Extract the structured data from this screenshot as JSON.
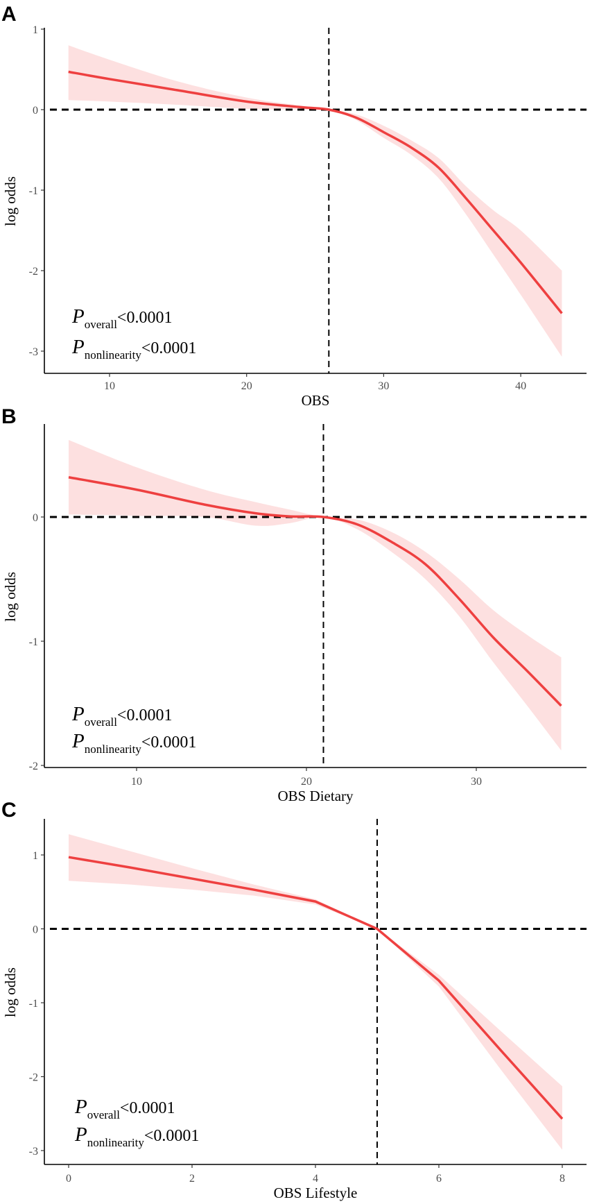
{
  "colors": {
    "line": "#EE4040",
    "band": "#FDE0E0",
    "ref": "#000000"
  },
  "chart_data": [
    {
      "type": "line",
      "panel_label": "A",
      "xlabel": "OBS",
      "ylabel": "log odds",
      "xticks": [
        10,
        20,
        30,
        40
      ],
      "yticks": [
        1,
        0,
        -1,
        -2,
        -3
      ],
      "xlim": [
        7,
        43
      ],
      "ylim": [
        -3.27,
        1
      ],
      "ref_x": 26,
      "ref_y": 0,
      "annotations": [
        {
          "symbol": "P",
          "sub": "overall",
          "text": "<0.0001"
        },
        {
          "symbol": "P",
          "sub": "nonlinearity",
          "text": "<0.0001"
        }
      ],
      "series": {
        "x": [
          7,
          10,
          15,
          20,
          24,
          26,
          28,
          30,
          32,
          34,
          36,
          38,
          40,
          43
        ],
        "y": [
          0.47,
          0.38,
          0.24,
          0.1,
          0.03,
          0,
          -0.1,
          -0.28,
          -0.47,
          -0.72,
          -1.1,
          -1.5,
          -1.9,
          -2.53
        ],
        "upper": [
          0.8,
          0.62,
          0.35,
          0.15,
          0.05,
          0,
          -0.06,
          -0.2,
          -0.38,
          -0.6,
          -0.95,
          -1.25,
          -1.5,
          -2.0
        ],
        "lower": [
          0.12,
          0.1,
          0.06,
          0.01,
          0.0,
          0,
          -0.13,
          -0.35,
          -0.56,
          -0.85,
          -1.3,
          -1.8,
          -2.3,
          -3.07
        ]
      }
    },
    {
      "type": "line",
      "panel_label": "B",
      "xlabel": "OBS Dietary",
      "ylabel": "log odds",
      "xticks": [
        10,
        20,
        30
      ],
      "yticks": [
        0,
        -1,
        -2
      ],
      "xlim": [
        6,
        35
      ],
      "ylim": [
        -2,
        0.75
      ],
      "ref_x": 21,
      "ref_y": 0,
      "annotations": [
        {
          "symbol": "P",
          "sub": "overall",
          "text": "<0.0001"
        },
        {
          "symbol": "P",
          "sub": "nonlinearity",
          "text": "<0.0001"
        }
      ],
      "series": {
        "x": [
          6,
          10,
          14,
          17,
          19,
          21,
          23,
          25,
          27,
          29,
          31,
          33,
          35
        ],
        "y": [
          0.32,
          0.22,
          0.1,
          0.03,
          0.005,
          0,
          -0.06,
          -0.2,
          -0.38,
          -0.66,
          -0.97,
          -1.24,
          -1.52
        ],
        "upper": [
          0.62,
          0.4,
          0.22,
          0.12,
          0.06,
          0,
          -0.02,
          -0.12,
          -0.28,
          -0.5,
          -0.75,
          -0.95,
          -1.13
        ],
        "lower": [
          0.02,
          0.01,
          0.0,
          -0.07,
          -0.05,
          0,
          -0.1,
          -0.28,
          -0.5,
          -0.8,
          -1.17,
          -1.52,
          -1.88
        ]
      }
    },
    {
      "type": "line",
      "panel_label": "C",
      "xlabel": "OBS Lifestyle",
      "ylabel": "log odds",
      "xticks": [
        0,
        2,
        4,
        6,
        8
      ],
      "yticks": [
        1,
        0,
        -1,
        -2,
        -3
      ],
      "xlim": [
        0,
        8
      ],
      "ylim": [
        -3.19,
        1.48
      ],
      "ref_x": 5,
      "ref_y": 0,
      "annotations": [
        {
          "symbol": "P",
          "sub": "overall",
          "text": "<0.0001"
        },
        {
          "symbol": "P",
          "sub": "nonlinearity",
          "text": "<0.0001"
        }
      ],
      "series": {
        "x": [
          0,
          1,
          2,
          3,
          4,
          5,
          6,
          7,
          8
        ],
        "y": [
          0.97,
          0.83,
          0.68,
          0.53,
          0.37,
          0,
          -0.7,
          -1.64,
          -2.57
        ],
        "upper": [
          1.28,
          1.05,
          0.82,
          0.6,
          0.4,
          0,
          -0.62,
          -1.38,
          -2.13
        ],
        "lower": [
          0.65,
          0.6,
          0.53,
          0.45,
          0.33,
          0,
          -0.78,
          -1.9,
          -2.99
        ]
      }
    }
  ]
}
